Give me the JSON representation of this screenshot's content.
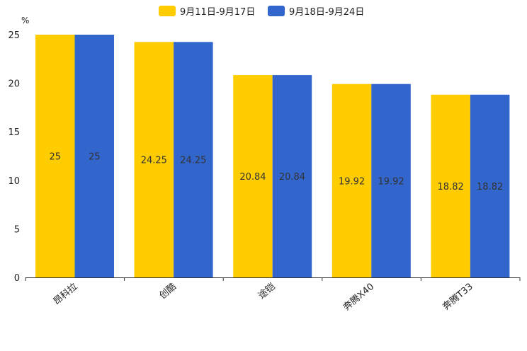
{
  "chart_data": {
    "type": "bar",
    "title": "",
    "xlabel": "",
    "ylabel": "",
    "y_unit": "%",
    "ylim": [
      0,
      25
    ],
    "yticks": [
      0,
      5,
      10,
      15,
      20,
      25
    ],
    "grid": false,
    "legend_position": "top-center",
    "categories": [
      "昂科拉",
      "创酷",
      "途铠",
      "奔腾X40",
      "奔腾T33"
    ],
    "series": [
      {
        "name": "9月11日-9月17日",
        "color": "#ffcc00",
        "values": [
          25,
          24.25,
          20.84,
          19.92,
          18.82
        ]
      },
      {
        "name": "9月18日-9月24日",
        "color": "#3366cc",
        "values": [
          25,
          24.25,
          20.84,
          19.92,
          18.82
        ]
      }
    ],
    "data_labels": [
      [
        "25",
        "24.25",
        "20.84",
        "19.92",
        "18.82"
      ],
      [
        "25",
        "24.25",
        "20.84",
        "19.92",
        "18.82"
      ]
    ]
  }
}
